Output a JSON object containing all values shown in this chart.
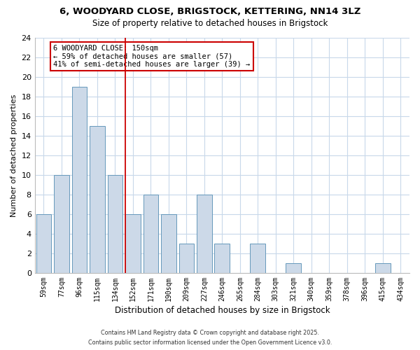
{
  "title": "6, WOODYARD CLOSE, BRIGSTOCK, KETTERING, NN14 3LZ",
  "subtitle": "Size of property relative to detached houses in Brigstock",
  "xlabel": "Distribution of detached houses by size in Brigstock",
  "ylabel": "Number of detached properties",
  "bar_color": "#ccd9e8",
  "bar_edge_color": "#6699bb",
  "background_color": "#ffffff",
  "grid_color": "#c8d8ea",
  "categories": [
    "59sqm",
    "77sqm",
    "96sqm",
    "115sqm",
    "134sqm",
    "152sqm",
    "171sqm",
    "190sqm",
    "209sqm",
    "227sqm",
    "246sqm",
    "265sqm",
    "284sqm",
    "303sqm",
    "321sqm",
    "340sqm",
    "359sqm",
    "378sqm",
    "396sqm",
    "415sqm",
    "434sqm"
  ],
  "values": [
    6,
    10,
    19,
    15,
    10,
    6,
    8,
    6,
    3,
    8,
    3,
    0,
    3,
    0,
    1,
    0,
    0,
    0,
    0,
    1,
    0
  ],
  "ylim": [
    0,
    24
  ],
  "yticks": [
    0,
    2,
    4,
    6,
    8,
    10,
    12,
    14,
    16,
    18,
    20,
    22,
    24
  ],
  "vline_index": 5,
  "vline_color": "#cc0000",
  "annotation_line1": "6 WOODYARD CLOSE: 150sqm",
  "annotation_line2": "← 59% of detached houses are smaller (57)",
  "annotation_line3": "41% of semi-detached houses are larger (39) →",
  "annotation_box_color": "#ffffff",
  "annotation_box_edge_color": "#cc0000",
  "footer_line1": "Contains HM Land Registry data © Crown copyright and database right 2025.",
  "footer_line2": "Contains public sector information licensed under the Open Government Licence v3.0."
}
